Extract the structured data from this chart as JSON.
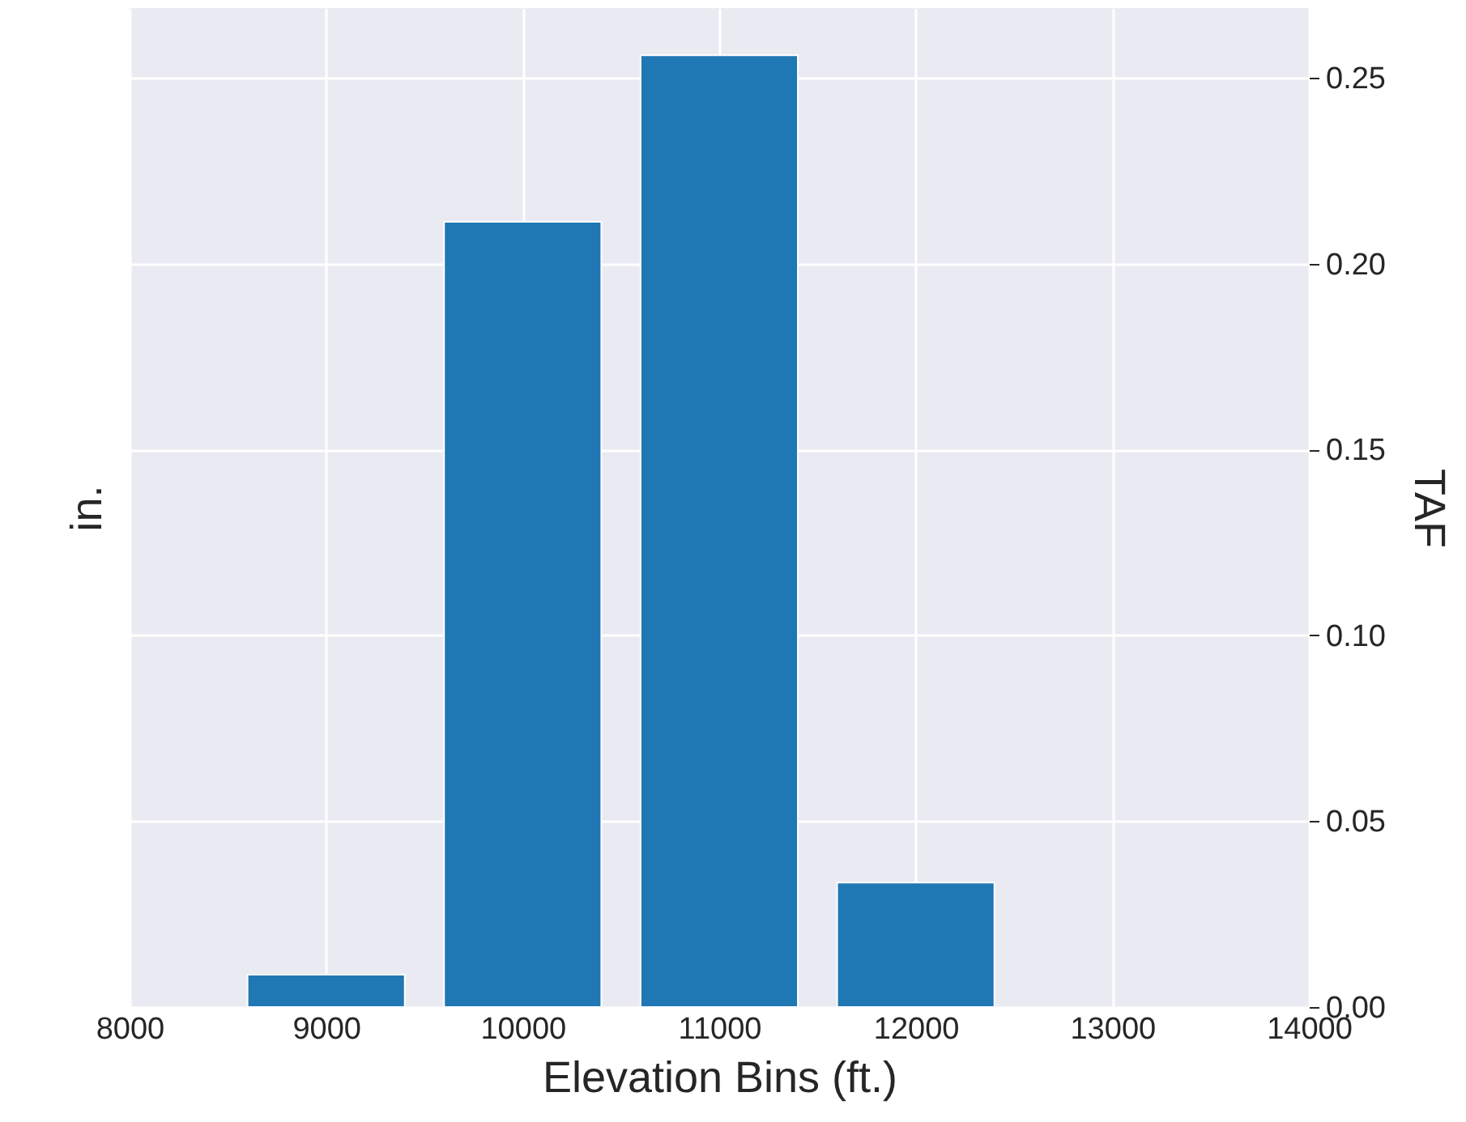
{
  "chart_data": {
    "type": "bar",
    "xlabel": "Elevation Bins (ft.)",
    "ylabel": "in.",
    "y2label": "TAF",
    "x": [
      9000,
      10000,
      11000,
      12000
    ],
    "series": [
      {
        "color": "#1f77b4",
        "axis": "y2",
        "values": [
          0.0087,
          0.2112,
          0.256,
          0.0335
        ]
      }
    ],
    "xlim": [
      8000,
      14000
    ],
    "xticks": [
      8000,
      9000,
      10000,
      11000,
      12000,
      13000,
      14000
    ],
    "y2lim": [
      0,
      0.2687
    ],
    "y2ticks": [
      {
        "value": 0,
        "label": "0.00"
      },
      0.05,
      {
        "value": 0.1,
        "label": "0.10"
      },
      0.15,
      {
        "value": 0.2,
        "label": "0.20"
      },
      0.25
    ],
    "tick_labels": [
      "x",
      "y2"
    ],
    "grid": true
  }
}
